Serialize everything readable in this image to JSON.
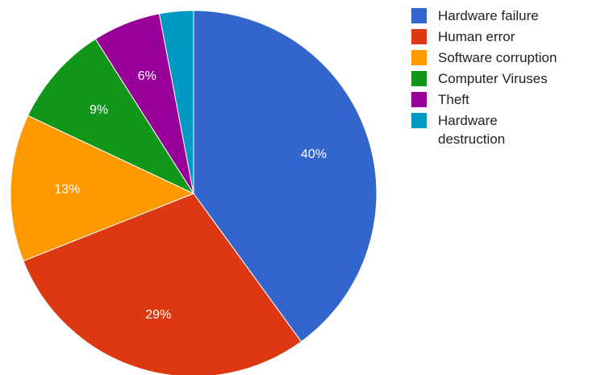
{
  "chart_data": {
    "type": "pie",
    "categories": [
      "Hardware failure",
      "Human error",
      "Software corruption",
      "Computer Viruses",
      "Theft",
      "Hardware destruction"
    ],
    "values": [
      40,
      29,
      13,
      9,
      6,
      3
    ],
    "data_labels": [
      "40%",
      "29%",
      "13%",
      "9%",
      "6%",
      ""
    ],
    "colors": [
      "#3366cc",
      "#dc3912",
      "#ff9900",
      "#109618",
      "#990099",
      "#0099c6"
    ],
    "legend": {
      "position": "right",
      "entries": [
        {
          "lines": [
            "Hardware failure"
          ]
        },
        {
          "lines": [
            "Human error"
          ]
        },
        {
          "lines": [
            "Software corruption"
          ]
        },
        {
          "lines": [
            "Computer Viruses"
          ]
        },
        {
          "lines": [
            "Theft"
          ]
        },
        {
          "lines": [
            "Hardware",
            "destruction"
          ]
        }
      ]
    },
    "title": "",
    "start_angle": "12 o'clock",
    "direction": "clockwise"
  }
}
